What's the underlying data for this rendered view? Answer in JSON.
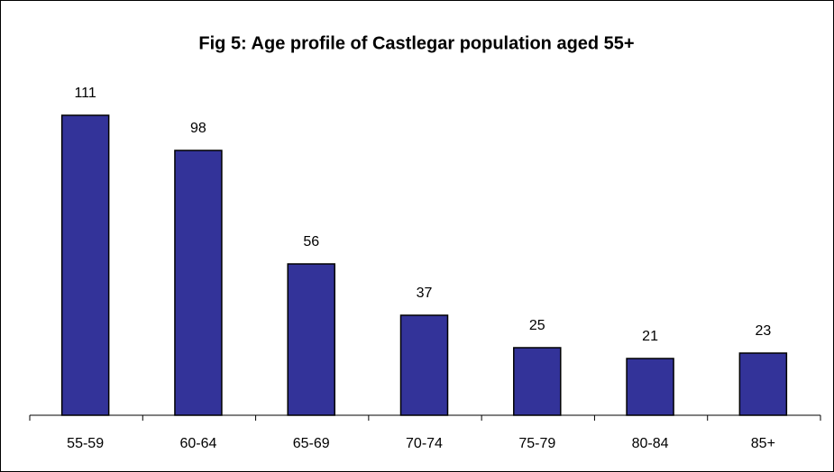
{
  "chart_data": {
    "type": "bar",
    "title": "Fig 5: Age profile of Castlegar population aged 55+",
    "categories": [
      "55-59",
      "60-64",
      "65-69",
      "70-74",
      "75-79",
      "80-84",
      "85+"
    ],
    "values": [
      111,
      98,
      56,
      37,
      25,
      21,
      23
    ],
    "color": "#333399",
    "ylim": [
      0,
      120
    ],
    "grid": false
  }
}
